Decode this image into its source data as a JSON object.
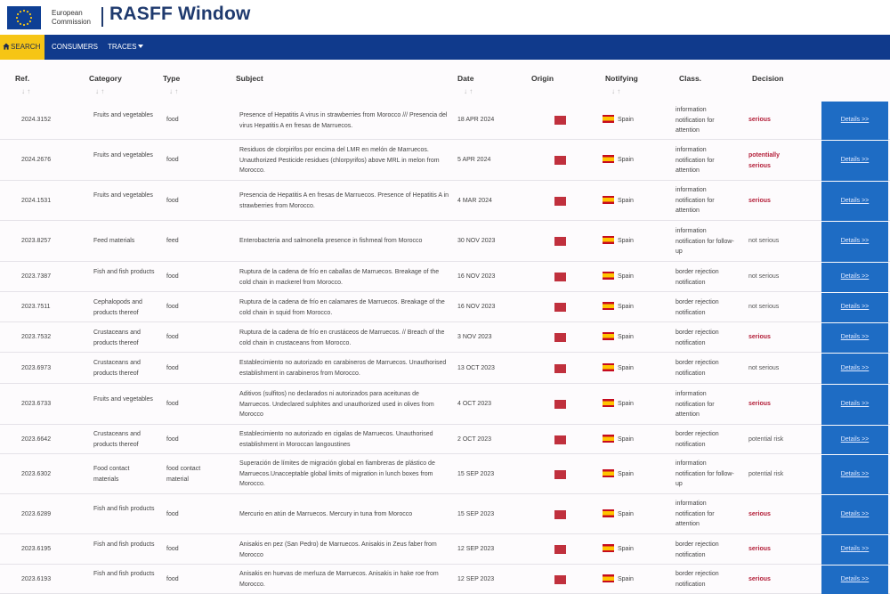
{
  "header": {
    "eu_line1": "European",
    "eu_line2": "Commission",
    "title": "RASFF Window"
  },
  "nav": {
    "search": "SEARCH",
    "consumers": "CONSUMERS",
    "traces": "TRACES"
  },
  "columns": {
    "ref": "Ref.",
    "category": "Category",
    "type": "Type",
    "subject": "Subject",
    "date": "Date",
    "origin": "Origin",
    "notifying": "Notifying",
    "class": "Class.",
    "decision": "Decision"
  },
  "sort_glyph": "↓ ↑",
  "details_label": "Details >>",
  "colors": {
    "nav": "#103a8c",
    "search_tab": "#f6c515",
    "details_button": "#1e6cc4",
    "serious": "#b4203a"
  },
  "rows": [
    {
      "ref": "2024.3152",
      "category": "Fruits and vegetables",
      "type": "food",
      "subject": "Presence of Hepatitis A virus in strawberries from Morocco /// Presencia del virus Hepatitis A en fresas de Marruecos.",
      "date": "18 APR 2024",
      "notifying": "Spain",
      "class": "information notification for attention",
      "decision": "serious",
      "severity": "serious"
    },
    {
      "ref": "2024.2676",
      "category": "Fruits and vegetables",
      "type": "food",
      "subject": "Residuos de clorpirifos por encima del LMR en melón de Marruecos. Unauthorized Pesticide residues (chlorpyrifos) above MRL in melon from Morocco.",
      "date": "5 APR 2024",
      "notifying": "Spain",
      "class": "information notification for attention",
      "decision": "potentially serious",
      "severity": "serious"
    },
    {
      "ref": "2024.1531",
      "category": "Fruits and vegetables",
      "type": "food",
      "subject": "Presencia de Hepatitis A en fresas de Marruecos. Presence of Hepatitis A in strawberries from Morocco.",
      "date": "4 MAR 2024",
      "notifying": "Spain",
      "class": "information notification for attention",
      "decision": "serious",
      "severity": "serious"
    },
    {
      "ref": "2023.8257",
      "category": "Feed materials",
      "type": "feed",
      "subject": "Enterobacteria and salmonella presence in fishmeal from Morocco",
      "date": "30 NOV 2023",
      "notifying": "Spain",
      "class": "information notification for follow-up",
      "decision": "not serious",
      "severity": "normal"
    },
    {
      "ref": "2023.7387",
      "category": "Fish and fish products",
      "type": "food",
      "subject": "Ruptura de la cadena de frío en caballas de Marruecos. Breakage of the cold chain in mackerel from Morocco.",
      "date": "16 NOV 2023",
      "notifying": "Spain",
      "class": "border rejection notification",
      "decision": "not serious",
      "severity": "normal"
    },
    {
      "ref": "2023.7511",
      "category": "Cephalopods and products thereof",
      "type": "food",
      "subject": "Ruptura de la cadena de frío en calamares de Marruecos. Breakage of the cold chain in squid from Morocco.",
      "date": "16 NOV 2023",
      "notifying": "Spain",
      "class": "border rejection notification",
      "decision": "not serious",
      "severity": "normal"
    },
    {
      "ref": "2023.7532",
      "category": "Crustaceans and products thereof",
      "type": "food",
      "subject": "Ruptura de la cadena de frío en crustáceos de Marruecos. // Breach of the cold chain in crustaceans from Morocco.",
      "date": "3 NOV 2023",
      "notifying": "Spain",
      "class": "border rejection notification",
      "decision": "serious",
      "severity": "serious"
    },
    {
      "ref": "2023.6973",
      "category": "Crustaceans and products thereof",
      "type": "food",
      "subject": "Establecimiento no autorizado en carabineros de Marruecos. Unauthorised establishment in carabineros from Morocco.",
      "date": "13 OCT 2023",
      "notifying": "Spain",
      "class": "border rejection notification",
      "decision": "not serious",
      "severity": "normal"
    },
    {
      "ref": "2023.6733",
      "category": "Fruits and vegetables",
      "type": "food",
      "subject": "Aditivos (sulfitos) no declarados ni autorizados para aceitunas de Marruecos. Undeclared sulphites and unauthorized used in olives from Morocco",
      "date": "4 OCT 2023",
      "notifying": "Spain",
      "class": "information notification for attention",
      "decision": "serious",
      "severity": "serious"
    },
    {
      "ref": "2023.6642",
      "category": "Crustaceans and products thereof",
      "type": "food",
      "subject": "Establecimiento no autorizado en cigalas de Marruecos. Unauthorised establishment in Moroccan langoustines",
      "date": "2 OCT 2023",
      "notifying": "Spain",
      "class": "border rejection notification",
      "decision": "potential risk",
      "severity": "normal"
    },
    {
      "ref": "2023.6302",
      "category": "Food contact materials",
      "type": "food contact material",
      "subject": "Superación de límites de migración global en fiambreras de plástico de Marruecos.Unacceptable global limits of migration in lunch boxes from Morocco.",
      "date": "15 SEP 2023",
      "notifying": "Spain",
      "class": "information notification for follow-up",
      "decision": "potential risk",
      "severity": "normal"
    },
    {
      "ref": "2023.6289",
      "category": "Fish and fish products",
      "type": "food",
      "subject": "Mercurio en atún de Marruecos. Mercury in tuna from Morocco",
      "date": "15 SEP 2023",
      "notifying": "Spain",
      "class": "information notification for attention",
      "decision": "serious",
      "severity": "serious"
    },
    {
      "ref": "2023.6195",
      "category": "Fish and fish products",
      "type": "food",
      "subject": "Anisakis en pez (San Pedro) de Marruecos. Anisakis in Zeus faber from Morocco",
      "date": "12 SEP 2023",
      "notifying": "Spain",
      "class": "border rejection notification",
      "decision": "serious",
      "severity": "serious"
    },
    {
      "ref": "2023.6193",
      "category": "Fish and fish products",
      "type": "food",
      "subject": "Anisakis en huevas de merluza de Marruecos. Anisakis in hake roe from Morocco.",
      "date": "12 SEP 2023",
      "notifying": "Spain",
      "class": "border rejection notification",
      "decision": "serious",
      "severity": "serious"
    }
  ]
}
